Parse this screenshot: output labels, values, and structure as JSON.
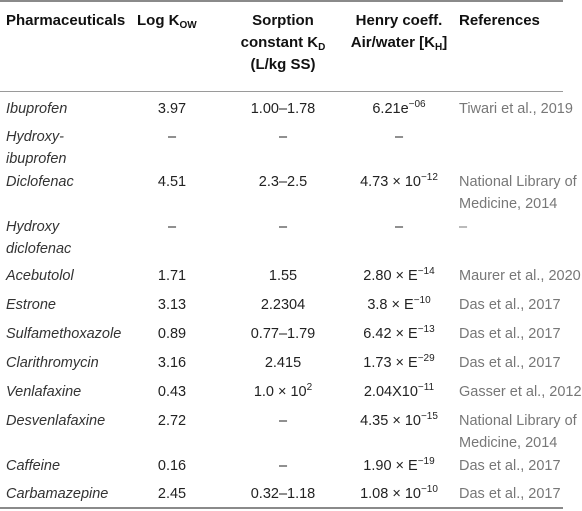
{
  "headers": {
    "name": "Pharmaceuticals",
    "log_main": "Log K",
    "log_sub": "OW",
    "sorp_line1": "Sorption",
    "sorp_line2_main": "constant K",
    "sorp_line2_sub": "D",
    "sorp_line3": "(L/kg SS)",
    "henry_line1": "Henry coeff.",
    "henry_line2_main": "Air/water [K",
    "henry_line2_sub": "H",
    "henry_line2_end": "]",
    "ref": "References"
  },
  "rows": [
    {
      "name": [
        "Ibuprofen"
      ],
      "log": "3.97",
      "sorp": "1.00–1.78",
      "henry": {
        "base": "6.21e",
        "exp": "−06"
      },
      "ref": [
        "Tiwari et al., 2019"
      ]
    },
    {
      "name": [
        "Hydroxy-",
        "ibuprofen"
      ],
      "log": "–",
      "sorp": "–",
      "henry": {
        "base": "–"
      },
      "ref": []
    },
    {
      "name": [
        "Diclofenac"
      ],
      "log": "4.51",
      "sorp": "2.3–2.5",
      "henry": {
        "base": "4.73 × 10",
        "exp": "−12"
      },
      "ref": [
        "National Library of",
        "Medicine, 2014"
      ]
    },
    {
      "name": [
        "Hydroxy",
        "diclofenac"
      ],
      "log": "–",
      "sorp": "–",
      "henry": {
        "base": "–"
      },
      "ref": [
        "–"
      ]
    },
    {
      "name": [
        "Acebutolol"
      ],
      "log": "1.71",
      "sorp": "1.55",
      "henry": {
        "base": "2.80 × E",
        "exp": "−14"
      },
      "ref": [
        "Maurer et al., 2020"
      ]
    },
    {
      "name": [
        "Estrone"
      ],
      "log": "3.13",
      "sorp": "2.2304",
      "henry": {
        "base": "3.8 × E",
        "exp": "−10"
      },
      "ref": [
        "Das et al., 2017"
      ]
    },
    {
      "name": [
        "Sulfamethoxazole"
      ],
      "log": "0.89",
      "sorp": "0.77–1.79",
      "henry": {
        "base": "6.42 × E",
        "exp": "−13"
      },
      "ref": [
        "Das et al., 2017"
      ]
    },
    {
      "name": [
        "Clarithromycin"
      ],
      "log": "3.16",
      "sorp": "2.415",
      "henry": {
        "base": "1.73 × E",
        "exp": "−29"
      },
      "ref": [
        "Das et al., 2017"
      ]
    },
    {
      "name": [
        "Venlafaxine"
      ],
      "log": "0.43",
      "sorp": {
        "base": "1.0 × 10",
        "exp": "2"
      },
      "henry": {
        "base": "2.04X10",
        "exp": "−11"
      },
      "ref": [
        "Gasser et al., 2012"
      ]
    },
    {
      "name": [
        "Desvenlafaxine"
      ],
      "log": "2.72",
      "sorp": "–",
      "henry": {
        "base": "4.35 × 10",
        "exp": "−15"
      },
      "ref": [
        "National Library of",
        "Medicine, 2014"
      ]
    },
    {
      "name": [
        "Caffeine"
      ],
      "log": "0.16",
      "sorp": "–",
      "henry": {
        "base": "1.90 × E",
        "exp": "−19"
      },
      "ref": [
        "Das et al., 2017"
      ]
    },
    {
      "name": [
        "Carbamazepine"
      ],
      "log": "2.45",
      "sorp": "0.32–1.18",
      "henry": {
        "base": "1.08 × 10",
        "exp": "−10"
      },
      "ref": [
        "Das et al., 2017"
      ]
    }
  ]
}
